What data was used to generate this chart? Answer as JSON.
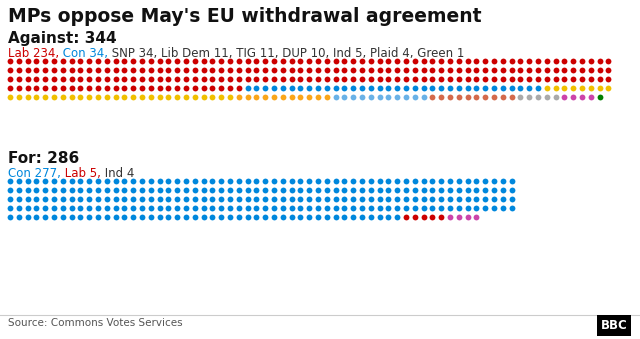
{
  "title": "MPs oppose May's EU withdrawal agreement",
  "bg_color": "#ffffff",
  "against_label": "Against: 344",
  "for_label": "For: 286",
  "against_legend_parts": [
    {
      "text": "Lab 234,",
      "color": "#cc0000"
    },
    {
      "text": " Con 34,",
      "color": "#0087dc"
    },
    {
      "text": " SNP 34, Lib Dem 11, TIG 11, DUP 10, Ind 5, Plaid 4, Green 1",
      "color": "#333333"
    }
  ],
  "for_legend_parts": [
    {
      "text": "Con 277,",
      "color": "#0087dc"
    },
    {
      "text": " Lab 5,",
      "color": "#cc0000"
    },
    {
      "text": " Ind 4",
      "color": "#333333"
    }
  ],
  "against_parties": [
    {
      "party": "Lab",
      "count": 234,
      "color": "#cc0000"
    },
    {
      "party": "Con",
      "count": 34,
      "color": "#0087dc"
    },
    {
      "party": "SNP",
      "count": 34,
      "color": "#f0c000"
    },
    {
      "party": "Lib Dem",
      "count": 11,
      "color": "#FAA61A"
    },
    {
      "party": "TIG",
      "count": 11,
      "color": "#6ab2e7"
    },
    {
      "party": "DUP",
      "count": 10,
      "color": "#D46A4C"
    },
    {
      "party": "Ind",
      "count": 5,
      "color": "#aaaaaa"
    },
    {
      "party": "Plaid",
      "count": 4,
      "color": "#cc44aa"
    },
    {
      "party": "Green",
      "count": 1,
      "color": "#008000"
    }
  ],
  "for_parties": [
    {
      "party": "Con",
      "count": 277,
      "color": "#0087dc"
    },
    {
      "party": "Lab",
      "count": 5,
      "color": "#cc0000"
    },
    {
      "party": "Ind",
      "count": 4,
      "color": "#cc44aa"
    }
  ],
  "against_cols": 69,
  "for_cols": 58,
  "source": "Source: Commons Votes Services"
}
